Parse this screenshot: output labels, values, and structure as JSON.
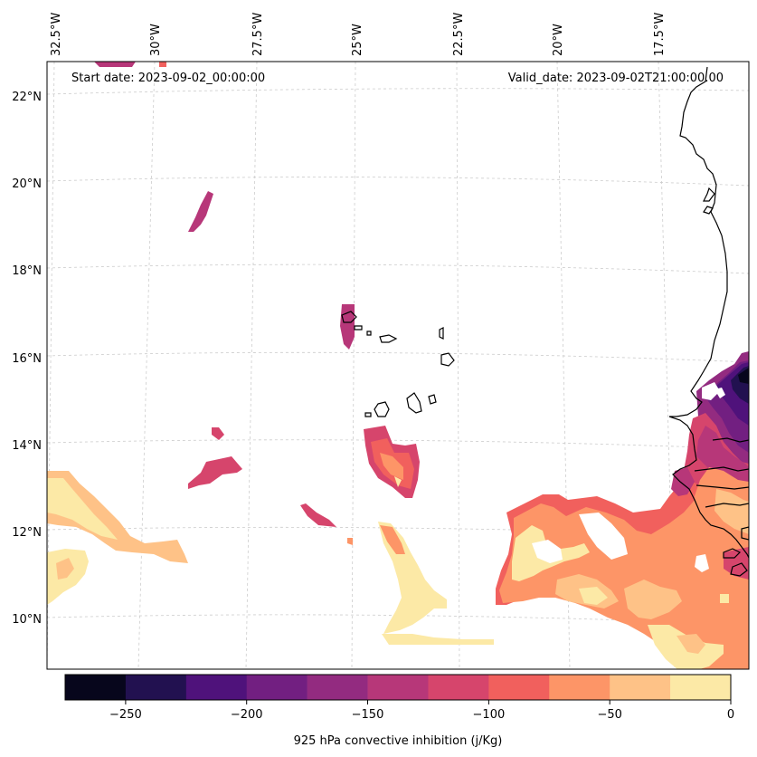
{
  "header": {
    "start_date": "Start date: 2023-09-02_00:00:00",
    "valid_date": "Valid_date: 2023-09-02T21:00:00.00"
  },
  "axes": {
    "lon_labels": [
      "32.5°W",
      "30°W",
      "27.5°W",
      "25°W",
      "22.5°W",
      "20°W",
      "17.5°W"
    ],
    "lat_labels": [
      "22°N",
      "20°N",
      "18°N",
      "16°N",
      "14°N",
      "12°N",
      "10°N"
    ]
  },
  "colorbar": {
    "label": "925 hPa convective inhibition (j/Kg)",
    "ticks": [
      "−250",
      "−200",
      "−150",
      "−100",
      "−50",
      "0"
    ],
    "levels": [
      -275,
      -250,
      -225,
      -200,
      -175,
      -150,
      -125,
      -100,
      -75,
      -50,
      -25,
      0
    ],
    "colors": [
      "#07061c",
      "#221150",
      "#4f127b",
      "#721f81",
      "#932b80",
      "#b73779",
      "#d6456c",
      "#f1605d",
      "#fd9567",
      "#fec287",
      "#fce9a6"
    ]
  }
}
